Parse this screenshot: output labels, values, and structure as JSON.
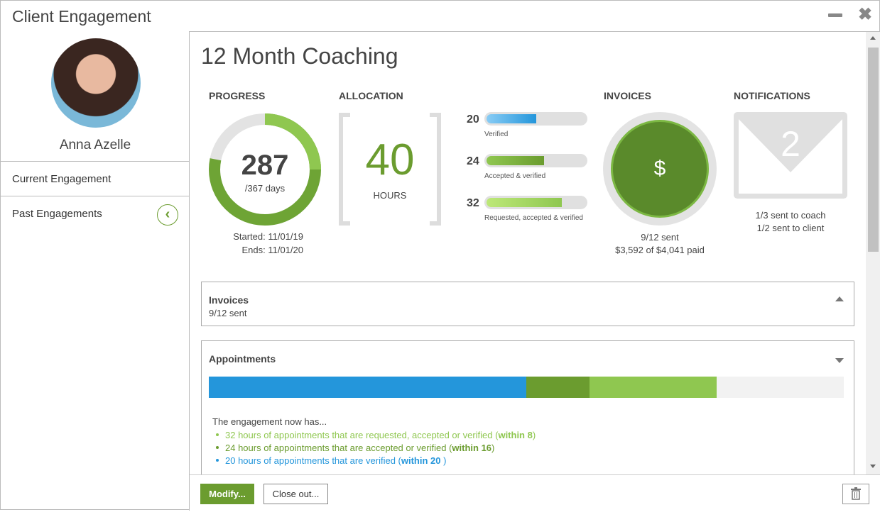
{
  "window": {
    "title": "Client Engagement"
  },
  "client": {
    "name": "Anna Azelle"
  },
  "sidebar": {
    "items": [
      {
        "label": "Current Engagement"
      },
      {
        "label": "Past Engagements"
      }
    ]
  },
  "main": {
    "title": "12 Month Coaching",
    "progress": {
      "label": "PROGRESS",
      "value": "287",
      "total": "/367 days",
      "days_done": 287,
      "days_total": 367,
      "started": "Started: 11/01/19",
      "ends": "Ends: 11/01/20"
    },
    "allocation": {
      "label": "ALLOCATION",
      "value": "40",
      "unit": "HOURS",
      "bars": [
        {
          "value": "20",
          "label": "Verified",
          "fraction": 0.5,
          "color": "#2496db"
        },
        {
          "value": "24",
          "label": "Accepted & verified",
          "fraction": 0.6,
          "color": "#6b9c2f"
        },
        {
          "value": "32",
          "label": "Requested, accepted & verified",
          "fraction": 0.8,
          "color": "#8fc750"
        }
      ]
    },
    "invoices": {
      "label": "INVOICES",
      "icon": "$",
      "sent": "9/12 sent",
      "paid": "$3,592 of $4,041 paid"
    },
    "notifications": {
      "label": "NOTIFICATIONS",
      "count": "2",
      "coach": "1/3 sent to coach",
      "client": "1/2 sent to client"
    },
    "invoices_panel": {
      "title": "Invoices",
      "sub": "9/12 sent"
    },
    "appointments_panel": {
      "title": "Appointments",
      "segments": [
        {
          "fraction": 0.5,
          "color": "#2496db"
        },
        {
          "fraction": 0.1,
          "color": "#6b9c2f"
        },
        {
          "fraction": 0.2,
          "color": "#8fc750"
        }
      ],
      "intro": "The engagement now has...",
      "items": [
        {
          "text": "32 hours of appointments that are requested, accepted or verified (",
          "bold": "within 8",
          ")": ")",
          "color": "#8fc750"
        },
        {
          "text": "24 hours of appointments that are accepted or verified (",
          "bold": "within 16",
          ")": ")",
          "color": "#6b9c2f"
        },
        {
          "text": "20 hours of appointments that are verified (",
          "bold": "within 20 ",
          ")": ")",
          "color": "#2496db"
        }
      ]
    }
  },
  "footer": {
    "modify": "Modify...",
    "close_out": "Close out..."
  }
}
